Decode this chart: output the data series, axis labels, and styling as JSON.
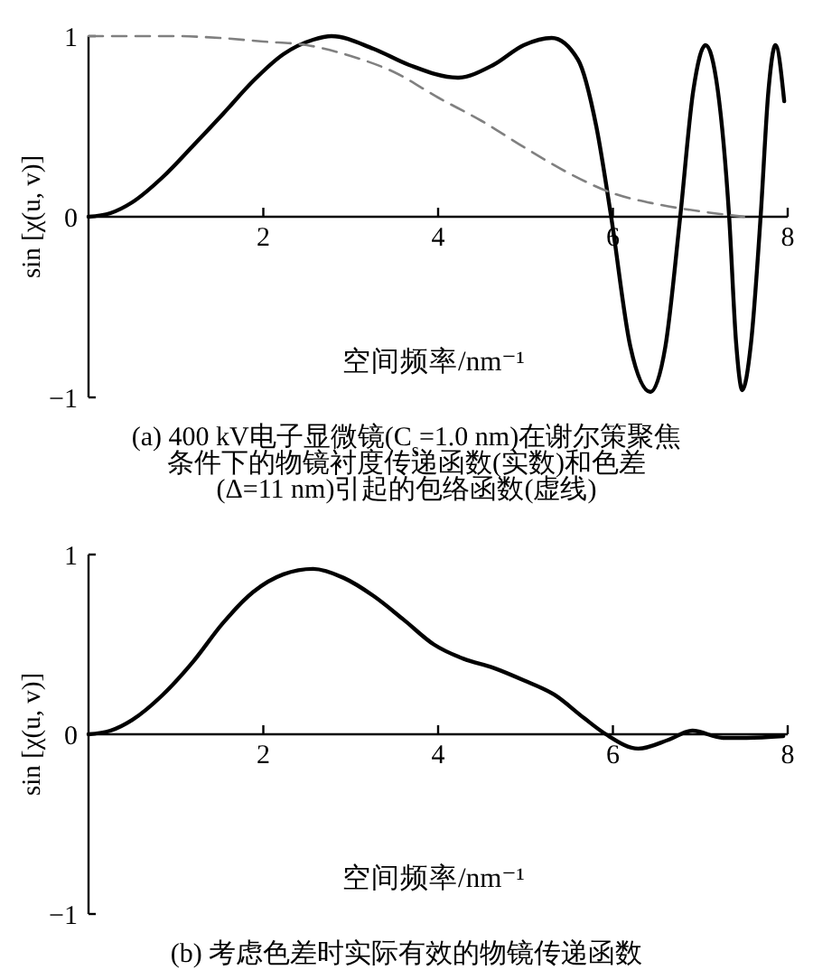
{
  "chart_data": [
    {
      "type": "line",
      "title": "(a) 400 kV电子显微镜(C$_{s}$=1.0 nm)在谢尔策聚焦条件下的物镜衬度传递函数(实数)和色差(Δ=11 nm)引起的包络函数(虚线)",
      "xlabel": "空间频率/nm⁻¹",
      "ylabel": "sin [χ(u, v)]",
      "xlim": [
        0,
        8
      ],
      "ylim": [
        -1,
        1
      ],
      "xticks": [
        2,
        4,
        6,
        8
      ],
      "yticks": [
        -1,
        0,
        1
      ],
      "series": [
        {
          "color": "#000000",
          "line_style": "solid",
          "x": [
            0,
            0.25,
            0.5,
            0.85,
            1.19,
            1.54,
            1.88,
            2.23,
            2.57,
            2.78,
            3.26,
            3.67,
            4.22,
            4.63,
            4.98,
            5.3,
            5.6,
            5.81,
            5.98,
            6.2,
            6.43,
            6.6,
            6.77,
            6.92,
            7.06,
            7.2,
            7.33,
            7.41,
            7.48,
            7.58,
            7.69,
            7.78,
            7.86,
            7.96
          ],
          "values": [
            0,
            0.02,
            0.08,
            0.22,
            0.39,
            0.57,
            0.75,
            0.9,
            0.98,
            1,
            0.93,
            0.84,
            0.77,
            0.84,
            0.95,
            0.99,
            0.87,
            0.5,
            0,
            -0.72,
            -0.97,
            -0.72,
            0,
            0.7,
            0.95,
            0.7,
            0,
            -0.7,
            -0.96,
            -0.7,
            0,
            0.7,
            0.95,
            0.64
          ]
        },
        {
          "color": "#808080",
          "line_style": "dashed",
          "x": [
            0,
            0.5,
            1,
            1.5,
            2,
            2.5,
            3,
            3.5,
            4,
            4.5,
            5,
            5.5,
            6,
            6.5,
            7,
            7.5
          ],
          "values": [
            1,
            1,
            1,
            0.99,
            0.97,
            0.95,
            0.89,
            0.8,
            0.66,
            0.53,
            0.38,
            0.24,
            0.13,
            0.07,
            0.03,
            0
          ]
        }
      ]
    },
    {
      "type": "line",
      "title": "(b) 考虑色差时实际有效的物镜传递函数",
      "xlabel": "空间频率/nm⁻¹",
      "ylabel": "sin [χ(u, v)]",
      "xlim": [
        0,
        8
      ],
      "ylim": [
        -1,
        1
      ],
      "xticks": [
        2,
        4,
        6,
        8
      ],
      "yticks": [
        -1,
        0,
        1
      ],
      "series": [
        {
          "color": "#000000",
          "line_style": "solid",
          "x": [
            0,
            0.25,
            0.5,
            0.85,
            1.19,
            1.54,
            1.88,
            2.23,
            2.57,
            2.92,
            3.26,
            3.6,
            3.95,
            4.29,
            4.63,
            4.98,
            5.33,
            5.67,
            5.92,
            6.29,
            6.64,
            6.91,
            7.26,
            7.53,
            7.95
          ],
          "values": [
            0,
            0.02,
            0.08,
            0.22,
            0.4,
            0.62,
            0.79,
            0.89,
            0.92,
            0.87,
            0.77,
            0.64,
            0.5,
            0.42,
            0.37,
            0.3,
            0.22,
            0.09,
            0,
            -0.08,
            -0.03,
            0.02,
            -0.02,
            -0.02,
            -0.01
          ]
        }
      ]
    }
  ]
}
